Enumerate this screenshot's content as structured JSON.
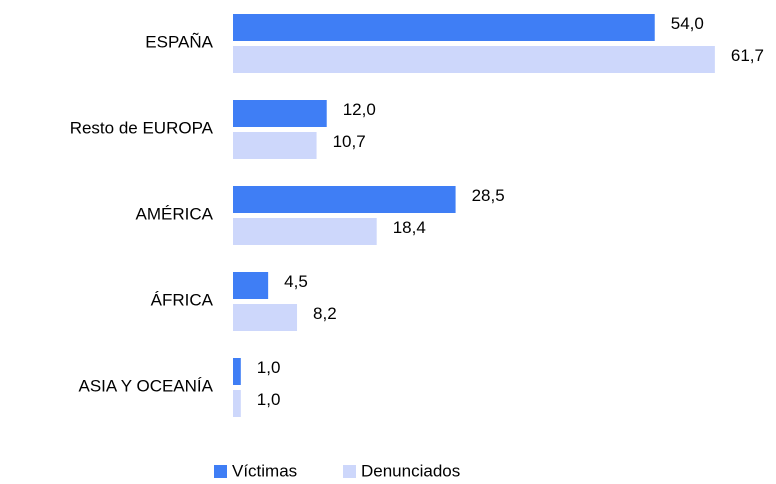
{
  "chart_data": {
    "type": "bar",
    "orientation": "horizontal",
    "categories": [
      "ESPAÑA",
      "Resto de EUROPA",
      "AMÉRICA",
      "ÁFRICA",
      "ASIA Y OCEANÍA"
    ],
    "series": [
      {
        "name": "Víctimas",
        "color": "#3f7ef5",
        "values": [
          54.0,
          12.0,
          28.5,
          4.5,
          1.0
        ],
        "value_labels": [
          "54,0",
          "12,0",
          "28,5",
          "4,5",
          "1,0"
        ]
      },
      {
        "name": "Denunciados",
        "color": "#cdd7fb",
        "values": [
          61.7,
          10.7,
          18.4,
          8.2,
          1.0
        ],
        "value_labels": [
          "61,7",
          "10,7",
          "18,4",
          "8,2",
          "1,0"
        ]
      }
    ],
    "legend": "bottom"
  }
}
